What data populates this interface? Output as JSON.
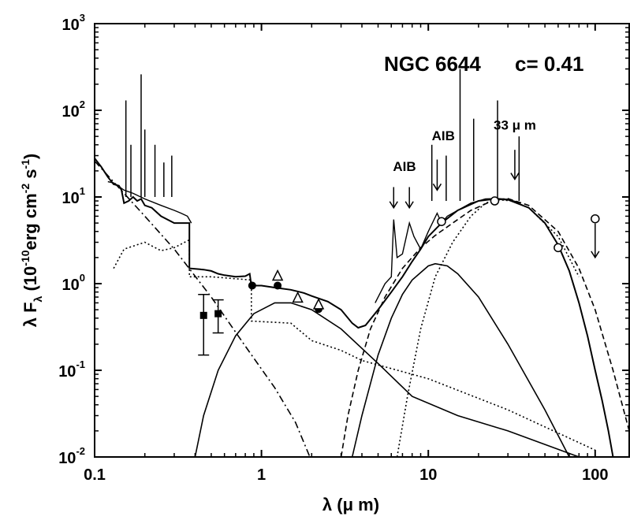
{
  "chart_data": {
    "type": "line",
    "title": "NGC 6644",
    "annotation_c": "c= 0.41",
    "xlabel": "λ (μ m)",
    "ylabel_parts": {
      "lead": "λ F",
      "sub": "λ",
      "open": " (10",
      "exp1": "-10",
      "mid": "erg cm",
      "exp2": "-2",
      "s": " s",
      "exp3": "-1",
      "close": ")"
    },
    "x_scale": "log",
    "y_scale": "log",
    "xlim": [
      0.1,
      160
    ],
    "ylim": [
      0.01,
      1000
    ],
    "x_ticks": [
      {
        "value": 0.1,
        "label": "0.1"
      },
      {
        "value": 1,
        "label": "1"
      },
      {
        "value": 10,
        "label": "10"
      },
      {
        "value": 100,
        "label": "100"
      }
    ],
    "y_ticks": [
      {
        "value": 0.01,
        "base": "10",
        "exp": "-2"
      },
      {
        "value": 0.1,
        "base": "10",
        "exp": "-1"
      },
      {
        "value": 1,
        "base": "10",
        "exp": "0"
      },
      {
        "value": 10,
        "base": "10",
        "exp": "1"
      },
      {
        "value": 100,
        "base": "10",
        "exp": "2"
      },
      {
        "value": 1000,
        "base": "10",
        "exp": "3"
      }
    ],
    "annotations": [
      {
        "text": "AIB",
        "x": 7.2,
        "y": 20
      },
      {
        "text": "AIB",
        "x": 12.3,
        "y": 45
      },
      {
        "text": "33 μ m",
        "x": 33,
        "y": 60
      }
    ],
    "arrows": [
      {
        "x": 6.2,
        "y_from": 13,
        "y_to": 7.5
      },
      {
        "x": 7.7,
        "y_from": 13,
        "y_to": 7.5
      },
      {
        "x": 11.3,
        "y_from": 27,
        "y_to": 12
      },
      {
        "x": 33,
        "y_from": 35,
        "y_to": 16
      }
    ],
    "series": [
      {
        "style": "solid",
        "points": [
          [
            0.1,
            28
          ],
          [
            0.11,
            22
          ],
          [
            0.12,
            17
          ],
          [
            0.13,
            14
          ],
          [
            0.14,
            13.5
          ],
          [
            0.145,
            12
          ],
          [
            0.15,
            8.5
          ],
          [
            0.16,
            9
          ],
          [
            0.17,
            10
          ],
          [
            0.18,
            9
          ],
          [
            0.19,
            9.5
          ],
          [
            0.2,
            8
          ],
          [
            0.22,
            7.5
          ],
          [
            0.25,
            6
          ],
          [
            0.3,
            5
          ],
          [
            0.33,
            5
          ],
          [
            0.37,
            5
          ],
          [
            0.37,
            1.5
          ],
          [
            0.45,
            1.45
          ],
          [
            0.5,
            1.4
          ],
          [
            0.55,
            1.3
          ],
          [
            0.6,
            1.25
          ],
          [
            0.7,
            1.2
          ],
          [
            0.8,
            1.22
          ],
          [
            0.85,
            1.3
          ],
          [
            0.87,
            0.95
          ],
          [
            1.0,
            0.95
          ],
          [
            1.2,
            0.9
          ],
          [
            1.5,
            0.85
          ],
          [
            1.8,
            0.78
          ],
          [
            2.0,
            0.72
          ],
          [
            2.5,
            0.62
          ],
          [
            3.0,
            0.5
          ],
          [
            3.5,
            0.35
          ],
          [
            3.8,
            0.31
          ],
          [
            4.2,
            0.33
          ],
          [
            5,
            0.5
          ],
          [
            6,
            0.8
          ],
          [
            7,
            1.2
          ],
          [
            8,
            1.8
          ],
          [
            9,
            2.5
          ],
          [
            10,
            3.5
          ],
          [
            12,
            5
          ],
          [
            15,
            7
          ],
          [
            20,
            9
          ],
          [
            25,
            9.5
          ],
          [
            30,
            9.3
          ],
          [
            40,
            7.5
          ],
          [
            50,
            5
          ],
          [
            60,
            2.8
          ],
          [
            70,
            1.4
          ],
          [
            80,
            0.6
          ],
          [
            90,
            0.25
          ],
          [
            100,
            0.1
          ],
          [
            110,
            0.045
          ],
          [
            120,
            0.02
          ],
          [
            128,
            0.01
          ]
        ]
      },
      {
        "style": "dashdot",
        "points": [
          [
            0.1,
            26
          ],
          [
            0.15,
            11
          ],
          [
            0.2,
            6
          ],
          [
            0.3,
            2.5
          ],
          [
            0.5,
            0.7
          ],
          [
            0.8,
            0.19
          ],
          [
            1.2,
            0.063
          ],
          [
            1.6,
            0.025
          ],
          [
            1.95,
            0.01
          ]
        ]
      },
      {
        "style": "dotted",
        "points": [
          [
            0.13,
            1.5
          ],
          [
            0.15,
            2.5
          ],
          [
            0.2,
            3.0
          ],
          [
            0.25,
            2.4
          ],
          [
            0.3,
            2.6
          ],
          [
            0.37,
            3.2
          ],
          [
            0.37,
            1.2
          ],
          [
            0.5,
            1.2
          ],
          [
            0.87,
            1.1
          ],
          [
            0.87,
            0.37
          ],
          [
            1.5,
            0.35
          ],
          [
            2,
            0.22
          ],
          [
            3,
            0.17
          ],
          [
            4,
            0.13
          ],
          [
            10,
            0.08
          ],
          [
            30,
            0.035
          ],
          [
            100,
            0.012
          ]
        ]
      },
      {
        "style": "solid",
        "points": [
          [
            0.4,
            0.01
          ],
          [
            0.45,
            0.03
          ],
          [
            0.55,
            0.1
          ],
          [
            0.7,
            0.25
          ],
          [
            0.9,
            0.45
          ],
          [
            1.2,
            0.6
          ],
          [
            1.5,
            0.6
          ],
          [
            2,
            0.5
          ],
          [
            3,
            0.3
          ],
          [
            5,
            0.12
          ],
          [
            8,
            0.05
          ],
          [
            15,
            0.03
          ],
          [
            30,
            0.02
          ],
          [
            80,
            0.01
          ]
        ]
      },
      {
        "style": "solid",
        "points": [
          [
            3.5,
            0.01
          ],
          [
            4,
            0.03
          ],
          [
            5,
            0.15
          ],
          [
            6,
            0.4
          ],
          [
            7,
            0.75
          ],
          [
            8,
            1.1
          ],
          [
            10,
            1.6
          ],
          [
            11,
            1.7
          ],
          [
            13,
            1.6
          ],
          [
            15,
            1.3
          ],
          [
            20,
            0.7
          ],
          [
            30,
            0.2
          ],
          [
            50,
            0.035
          ],
          [
            70,
            0.01
          ]
        ]
      },
      {
        "style": "dashed",
        "points": [
          [
            3.0,
            0.01
          ],
          [
            3.3,
            0.03
          ],
          [
            3.8,
            0.1
          ],
          [
            4.5,
            0.3
          ],
          [
            5.5,
            0.7
          ],
          [
            7,
            1.5
          ],
          [
            9,
            2.6
          ],
          [
            11,
            3.6
          ],
          [
            14,
            5
          ],
          [
            18,
            7
          ],
          [
            25,
            9.3
          ],
          [
            30,
            9.6
          ],
          [
            40,
            8
          ],
          [
            60,
            4
          ],
          [
            80,
            1.5
          ],
          [
            100,
            0.5
          ],
          [
            128,
            0.1
          ],
          [
            160,
            0.02
          ]
        ]
      },
      {
        "style": "thindotted",
        "points": [
          [
            6.5,
            0.01
          ],
          [
            7.5,
            0.05
          ],
          [
            9,
            0.3
          ],
          [
            11,
            1.2
          ],
          [
            14,
            3
          ],
          [
            18,
            6
          ],
          [
            22,
            8.5
          ],
          [
            26,
            9.3
          ],
          [
            32,
            9
          ],
          [
            40,
            7.5
          ],
          [
            60,
            3.5
          ],
          [
            80,
            1.2
          ]
        ]
      }
    ],
    "spectrum": [
      [
        0.12,
        15
      ],
      [
        0.13,
        14.5
      ],
      [
        0.15,
        12
      ],
      [
        0.17,
        11
      ],
      [
        0.2,
        9.5
      ],
      [
        0.25,
        8
      ],
      [
        0.3,
        7
      ],
      [
        0.33,
        6.5
      ],
      [
        0.36,
        6
      ],
      [
        0.38,
        5
      ]
    ],
    "spikes": [
      [
        0.154,
        130
      ],
      [
        0.165,
        40
      ],
      [
        0.19,
        260
      ],
      [
        0.2,
        60
      ],
      [
        0.23,
        40
      ],
      [
        0.26,
        25
      ],
      [
        0.29,
        30
      ],
      [
        15.5,
        300
      ],
      [
        18.7,
        80
      ],
      [
        26,
        130
      ],
      [
        10.5,
        40
      ],
      [
        12.8,
        30
      ],
      [
        35,
        50
      ]
    ],
    "iso_segment": [
      [
        4.8,
        0.6
      ],
      [
        5.5,
        1.0
      ],
      [
        6.0,
        1.2
      ],
      [
        6.2,
        5.5
      ],
      [
        6.5,
        2.0
      ],
      [
        7.0,
        2.2
      ],
      [
        7.7,
        5.0
      ],
      [
        8.2,
        3.5
      ],
      [
        9.0,
        2.5
      ],
      [
        10,
        4
      ],
      [
        11.3,
        6.5
      ],
      [
        12,
        5
      ],
      [
        13,
        6
      ],
      [
        15,
        7
      ],
      [
        18,
        8.5
      ],
      [
        22,
        9.5
      ],
      [
        26,
        9.6
      ],
      [
        30,
        9.4
      ],
      [
        36,
        8.5
      ]
    ],
    "markers": {
      "filled_squares": [
        [
          0.45,
          0.43
        ],
        [
          0.55,
          0.45
        ]
      ],
      "error_bars": [
        [
          0.45,
          0.15,
          0.75
        ],
        [
          0.55,
          0.27,
          0.65
        ]
      ],
      "filled_circles": [
        [
          0.88,
          0.95
        ],
        [
          1.25,
          0.95
        ],
        [
          2.2,
          0.51
        ]
      ],
      "open_triangles": [
        [
          1.25,
          1.22
        ],
        [
          1.65,
          0.68
        ],
        [
          2.2,
          0.57
        ]
      ],
      "open_circles": [
        [
          12,
          5.2
        ],
        [
          25,
          9
        ],
        [
          60,
          2.6
        ],
        [
          100,
          5.6
        ]
      ],
      "upper_limit_arrow": [
        100,
        5.6,
        2.0
      ]
    }
  }
}
